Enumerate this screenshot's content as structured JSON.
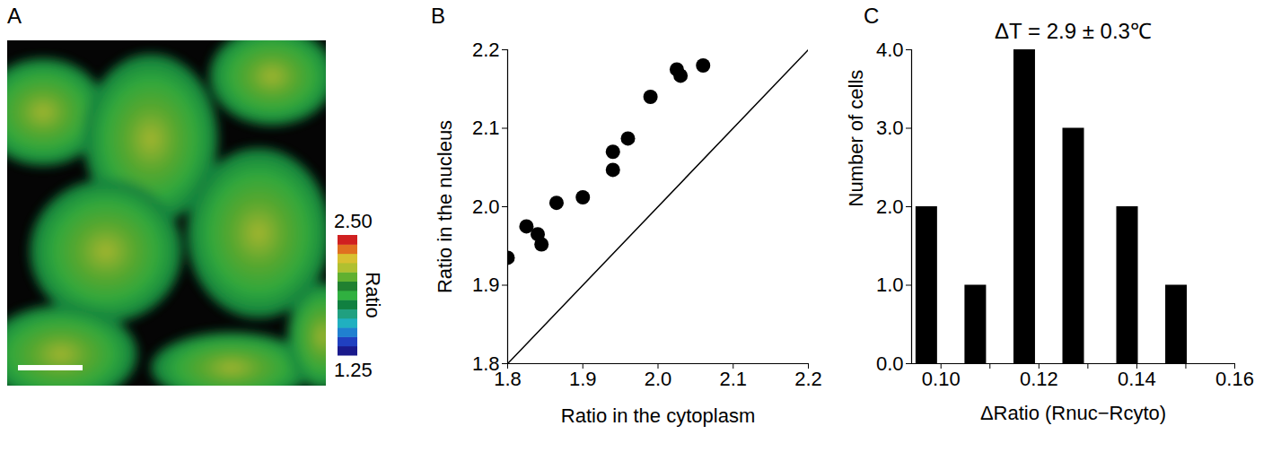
{
  "chart_data": [
    {
      "type": "image",
      "panel": "A",
      "colorbar": {
        "label": "Ratio",
        "range": [
          1.25,
          2.5
        ],
        "ticks": [
          {
            "value": 1.25,
            "label": "1.25"
          },
          {
            "value": 2.5,
            "label": "2.50"
          }
        ],
        "colors": [
          "#1a1a8c",
          "#2040c0",
          "#2080d0",
          "#20b0c0",
          "#20a080",
          "#108040",
          "#30b040",
          "#208030",
          "#60b030",
          "#b0c030",
          "#d8c030",
          "#e07020",
          "#d02020"
        ]
      }
    },
    {
      "type": "scatter",
      "panel": "B",
      "x_label": "Ratio in the cytoplasm",
      "y_label": "Ratio in the nucleus",
      "xlim": [
        1.8,
        2.2
      ],
      "ylim": [
        1.8,
        2.2
      ],
      "xticks": [
        1.8,
        1.9,
        {
          "value": 2,
          "label": "2.0"
        },
        2.1,
        2.2
      ],
      "yticks": [
        1.8,
        1.9,
        {
          "value": 2,
          "label": "2.0"
        },
        2.1,
        2.2
      ],
      "series": [
        {
          "type": "scatter",
          "marker": "circle",
          "color": "#000000",
          "x": [
            1.8,
            1.825,
            1.84,
            1.845,
            1.865,
            1.9,
            1.94,
            1.94,
            1.96,
            1.99,
            2.025,
            2.03,
            2.06
          ],
          "values": [
            1.935,
            1.975,
            1.965,
            1.952,
            2.005,
            2.012,
            2.07,
            2.047,
            2.087,
            2.14,
            2.175,
            2.167,
            2.18
          ]
        },
        {
          "type": "line",
          "line_style": "solid",
          "color": "#000000",
          "x": [
            1.8,
            2.2
          ],
          "values": [
            1.8,
            2.2
          ]
        }
      ]
    },
    {
      "type": "bar",
      "panel": "C",
      "title": "ΔT = 2.9 ± 0.3℃",
      "x_label": "ΔRatio (Rnuc−Rcyto)",
      "y_label": "Number of cells",
      "x": [
        0.097,
        0.107,
        0.117,
        0.127,
        0.138,
        0.148
      ],
      "values": [
        2,
        1,
        4,
        3,
        2,
        1
      ],
      "color": "#000000",
      "xlim": [
        0.094,
        0.16
      ],
      "xticks": [
        {
          "value": 0.1,
          "label": "0.10"
        },
        {
          "value": 0.12,
          "label": "0.12"
        },
        {
          "value": 0.14,
          "label": "0.14"
        },
        {
          "value": 0.16,
          "label": "0.16"
        }
      ],
      "xticks_minor": [
        0.11,
        0.13,
        0.15
      ],
      "ylim": [
        0,
        4
      ],
      "yticks": [
        0,
        1,
        2,
        3,
        4
      ]
    }
  ]
}
